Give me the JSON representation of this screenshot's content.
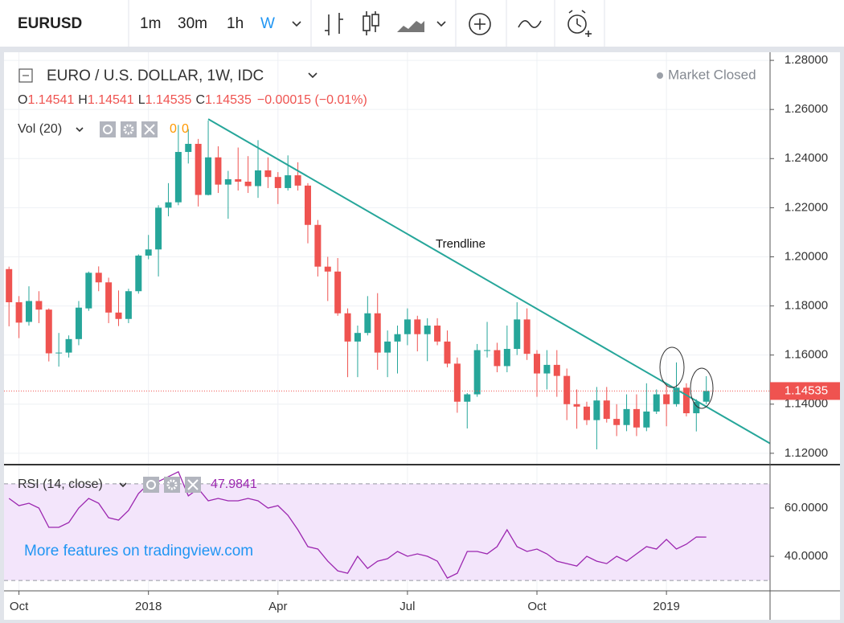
{
  "toolbar": {
    "symbol": "EURUSD",
    "intervals": [
      "1m",
      "30m",
      "1h",
      "W"
    ]
  },
  "chart_data": {
    "type": "candlestick",
    "title": "EURO / U.S. DOLLAR, 1W, IDC",
    "status": "Market Closed",
    "ohlc": [
      {
        "key": "O",
        "value": "1.14541"
      },
      {
        "key": "H",
        "value": "1.14541"
      },
      {
        "key": "L",
        "value": "1.14535"
      },
      {
        "key": "C",
        "value": "1.14535"
      }
    ],
    "change": "−0.00015 (−0.01%)",
    "volume_legend": {
      "label": "Vol (20)",
      "values": [
        0,
        0
      ]
    },
    "watermark": "More features on tradingview.com",
    "up_color": "#26a69a",
    "down_color": "#ef5350",
    "grid": true,
    "x": [
      0,
      1,
      2,
      3,
      4,
      5,
      6,
      7,
      8,
      9,
      10,
      11,
      12,
      13,
      14,
      15,
      16,
      17,
      18,
      19,
      20,
      21,
      22,
      23,
      24,
      25,
      26,
      27,
      28,
      29,
      30,
      31,
      32,
      33,
      34,
      35,
      36,
      37,
      38,
      39,
      40,
      41,
      42,
      43,
      44,
      45,
      46,
      47,
      48,
      49,
      50,
      51,
      52,
      53,
      54,
      55,
      56,
      57,
      58,
      59,
      60,
      61,
      62,
      63,
      64,
      65,
      66,
      67,
      68,
      69,
      70
    ],
    "xlim": [
      -0.5,
      76.4
    ],
    "xticks": [
      {
        "value": 1,
        "label": "Oct"
      },
      {
        "value": 14,
        "label": "2018"
      },
      {
        "value": 27,
        "label": "Apr"
      },
      {
        "value": 40,
        "label": "Jul"
      },
      {
        "value": 53,
        "label": "Oct"
      },
      {
        "value": 66,
        "label": "2019"
      }
    ],
    "ylim": [
      1.1157,
      1.2833
    ],
    "yticks": [
      {
        "value": 1.28,
        "label": "1.28000"
      },
      {
        "value": 1.26,
        "label": "1.26000"
      },
      {
        "value": 1.24,
        "label": "1.24000"
      },
      {
        "value": 1.22,
        "label": "1.22000"
      },
      {
        "value": 1.2,
        "label": "1.20000"
      },
      {
        "value": 1.18,
        "label": "1.18000"
      },
      {
        "value": 1.16,
        "label": "1.16000"
      },
      {
        "value": 1.14,
        "label": "1.14000"
      },
      {
        "value": 1.12,
        "label": "1.12000"
      }
    ],
    "open": [
      1.195,
      1.1815,
      1.1735,
      1.182,
      1.1785,
      1.1607,
      1.161,
      1.1665,
      1.179,
      1.1935,
      1.1896,
      1.1773,
      1.1747,
      1.186,
      1.2005,
      1.203,
      1.22,
      1.2222,
      1.2427,
      1.246,
      1.2252,
      1.2405,
      1.2294,
      1.2316,
      1.2306,
      1.2288,
      1.2352,
      1.2325,
      1.228,
      1.2332,
      1.229,
      1.213,
      1.196,
      1.194,
      1.177,
      1.1655,
      1.169,
      1.177,
      1.161,
      1.1655,
      1.1685,
      1.1745,
      1.1685,
      1.172,
      1.1655,
      1.1565,
      1.141,
      1.144,
      1.162,
      1.162,
      1.1555,
      1.1625,
      1.1745,
      1.1605,
      1.1525,
      1.156,
      1.1515,
      1.14,
      1.139,
      1.1335,
      1.1415,
      1.134,
      1.1315,
      1.138,
      1.1305,
      1.137,
      1.144,
      1.14,
      1.1467,
      1.1363,
      1.141
    ],
    "high": [
      1.196,
      1.184,
      1.188,
      1.186,
      1.179,
      1.169,
      1.168,
      1.182,
      1.194,
      1.1961,
      1.1915,
      1.1863,
      1.187,
      1.201,
      1.2089,
      1.221,
      1.23,
      1.2537,
      1.252,
      1.248,
      1.2555,
      1.245,
      1.235,
      1.2445,
      1.241,
      1.2475,
      1.2405,
      1.2345,
      1.2413,
      1.2385,
      1.23,
      1.215,
      1.2,
      1.1995,
      1.179,
      1.172,
      1.184,
      1.1852,
      1.17,
      1.172,
      1.179,
      1.176,
      1.175,
      1.175,
      1.17,
      1.159,
      1.1445,
      1.1645,
      1.1735,
      1.165,
      1.172,
      1.1815,
      1.179,
      1.162,
      1.162,
      1.162,
      1.1545,
      1.146,
      1.141,
      1.147,
      1.147,
      1.14,
      1.144,
      1.144,
      1.1485,
      1.146,
      1.1485,
      1.157,
      1.1485,
      1.142,
      1.1514
    ],
    "low": [
      1.1717,
      1.1669,
      1.172,
      1.173,
      1.1574,
      1.1553,
      1.159,
      1.164,
      1.178,
      1.186,
      1.173,
      1.1718,
      1.173,
      1.185,
      1.199,
      1.192,
      1.2165,
      1.221,
      1.238,
      1.2205,
      1.225,
      1.226,
      1.2155,
      1.227,
      1.226,
      1.224,
      1.228,
      1.2215,
      1.227,
      1.227,
      1.2055,
      1.192,
      1.182,
      1.176,
      1.151,
      1.151,
      1.168,
      1.154,
      1.151,
      1.1525,
      1.164,
      1.1615,
      1.1575,
      1.164,
      1.155,
      1.1365,
      1.1301,
      1.143,
      1.159,
      1.153,
      1.153,
      1.16,
      1.158,
      1.143,
      1.146,
      1.143,
      1.1335,
      1.13,
      1.1315,
      1.1216,
      1.1325,
      1.127,
      1.129,
      1.127,
      1.129,
      1.136,
      1.131,
      1.139,
      1.135,
      1.1289,
      1.14
    ],
    "close": [
      1.1815,
      1.1732,
      1.182,
      1.1785,
      1.1607,
      1.161,
      1.1665,
      1.1793,
      1.1935,
      1.1896,
      1.1773,
      1.1747,
      1.186,
      1.2005,
      1.203,
      1.22,
      1.2222,
      1.2427,
      1.246,
      1.2252,
      1.2405,
      1.2294,
      1.2316,
      1.2306,
      1.2288,
      1.2352,
      1.2325,
      1.228,
      1.2332,
      1.229,
      1.213,
      1.196,
      1.194,
      1.177,
      1.1655,
      1.169,
      1.177,
      1.161,
      1.1655,
      1.1685,
      1.1745,
      1.1685,
      1.172,
      1.1655,
      1.1565,
      1.141,
      1.144,
      1.162,
      1.162,
      1.1555,
      1.1625,
      1.1745,
      1.1605,
      1.1525,
      1.156,
      1.1515,
      1.14,
      1.139,
      1.1335,
      1.1415,
      1.134,
      1.1315,
      1.138,
      1.1305,
      1.137,
      1.144,
      1.14,
      1.1467,
      1.1363,
      1.141,
      1.1454
    ],
    "last_price": 1.14535,
    "trendline": {
      "label": "Trendline",
      "x": [
        20,
        76.4
      ],
      "y": [
        1.2561,
        1.124
      ],
      "color": "#26a69a"
    },
    "rsi": {
      "label": "RSI (14, close)",
      "color": "#9c27b0",
      "values": [
        64,
        61,
        62,
        60,
        52,
        52,
        54,
        60,
        64,
        62,
        56,
        55,
        59,
        66,
        70,
        71,
        73,
        75,
        65,
        68,
        63,
        64,
        63,
        63,
        64,
        63,
        60,
        61,
        57,
        51,
        44,
        43,
        38,
        34,
        33,
        40,
        35,
        38,
        39,
        42,
        40,
        41,
        40,
        38,
        31,
        33,
        42,
        42,
        41,
        44,
        51,
        44,
        42,
        43,
        41,
        38,
        37,
        36,
        40,
        38,
        37,
        40,
        38,
        41,
        44,
        43,
        47,
        43,
        45,
        48,
        47.9841
      ],
      "ylim": [
        25.7,
        77.3
      ],
      "yticks": [
        {
          "value": 60,
          "label": "60.0000"
        },
        {
          "value": 40,
          "label": "40.0000"
        }
      ],
      "bands": [
        30,
        70
      ]
    }
  }
}
